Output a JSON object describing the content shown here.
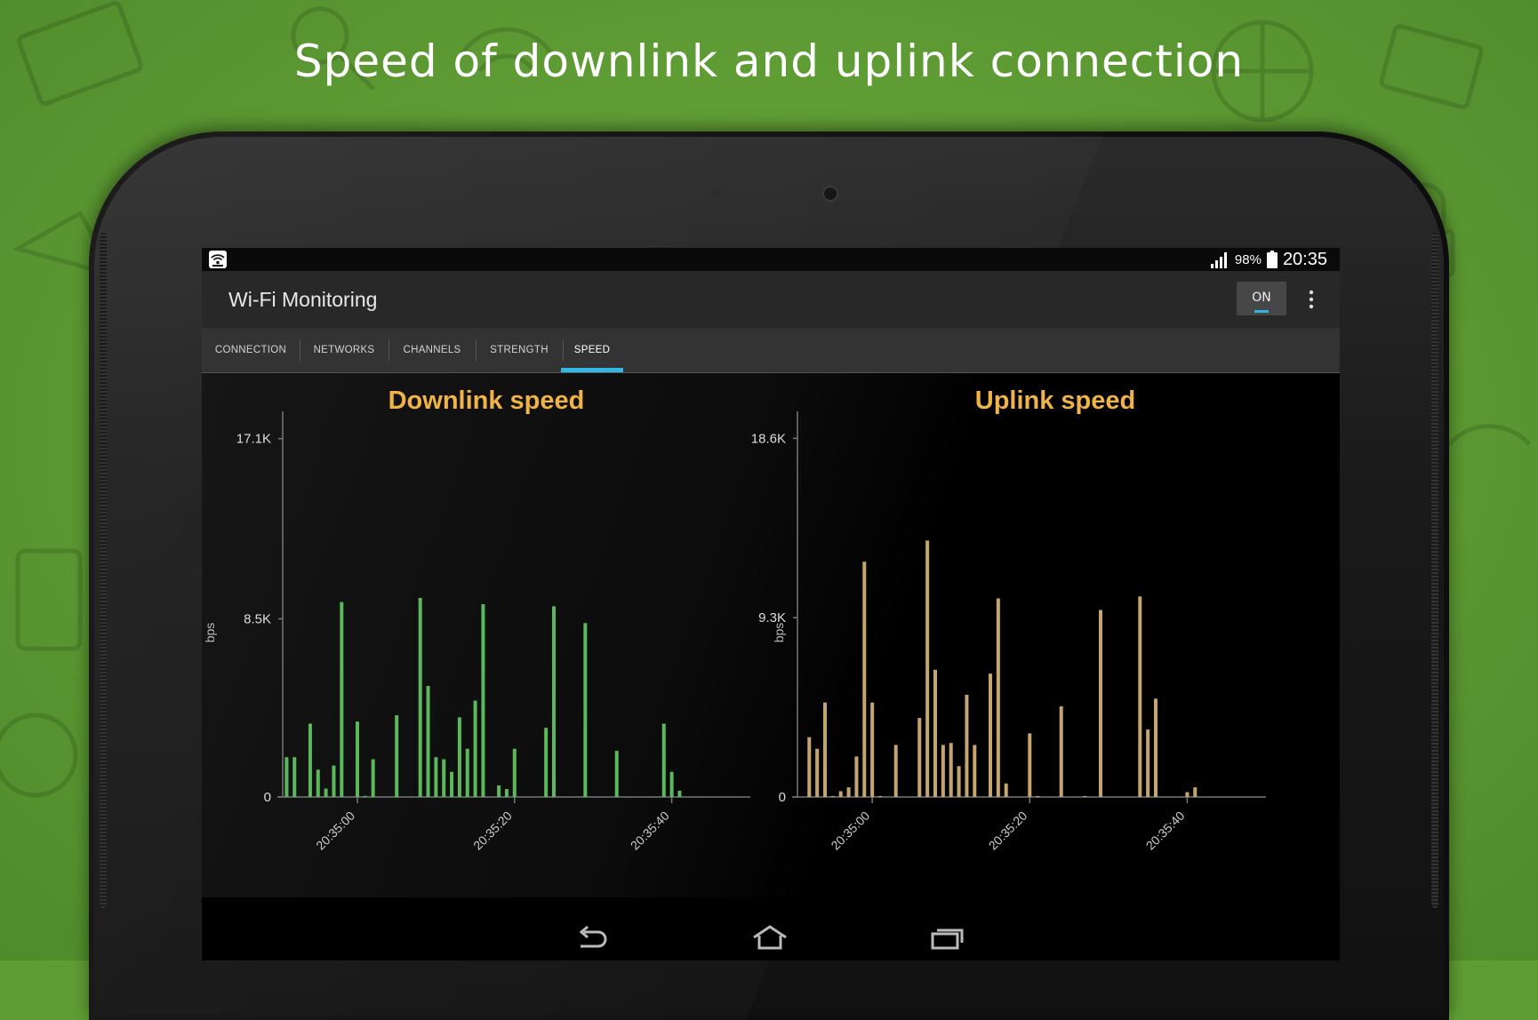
{
  "headline": "Speed of downlink and uplink connection",
  "status_bar": {
    "battery": "98%",
    "time": "20:35",
    "icons": [
      "wifi-monitor-icon",
      "signal-icon",
      "battery-icon"
    ]
  },
  "app": {
    "title": "Wi-Fi Monitoring",
    "toggle_label": "ON"
  },
  "tabs": [
    {
      "label": "CONNECTION"
    },
    {
      "label": "NETWORKS"
    },
    {
      "label": "CHANNELS"
    },
    {
      "label": "STRENGTH"
    },
    {
      "label": "SPEED",
      "active": true
    }
  ],
  "colors": {
    "accent": "#33b5e5",
    "chart_title": "#f0b347",
    "downlink_bar": "#5cb85c",
    "uplink_bar": "#c4a470",
    "background_green": "#5f9d34"
  },
  "nav_icons": [
    "back-icon",
    "home-icon",
    "recents-icon"
  ],
  "chart_data": [
    {
      "type": "bar",
      "title": "Downlink speed",
      "ylabel": "bps",
      "ytick_labels": [
        "0",
        "8.5K",
        "17.1K"
      ],
      "yticks": [
        0,
        8500,
        17100
      ],
      "ylim": [
        0,
        18400
      ],
      "xlim": [
        -3.5,
        56
      ],
      "xtick_positions": [
        6,
        26,
        46
      ],
      "xtick_labels": [
        "20:35:00",
        "20:35:20",
        "20:35:40"
      ],
      "color": "#5cb85c",
      "x": [
        -3,
        -2,
        0,
        1,
        2,
        3,
        4,
        6,
        7,
        8,
        11,
        14,
        15,
        16,
        17,
        18,
        19,
        20,
        21,
        22,
        24,
        25,
        26,
        30,
        31,
        35,
        39,
        45,
        46,
        47,
        48,
        49
      ],
      "values": [
        1900,
        1900,
        3500,
        1300,
        400,
        1500,
        9300,
        3600,
        50,
        1800,
        3900,
        9500,
        5300,
        1900,
        1800,
        1200,
        3800,
        2300,
        4600,
        9200,
        550,
        380,
        2300,
        3300,
        9100,
        8300,
        2200,
        3500,
        1200,
        300,
        0,
        0
      ]
    },
    {
      "type": "bar",
      "title": "Uplink speed",
      "ylabel": "bps",
      "ytick_labels": [
        "0",
        "9.3K",
        "18.6K"
      ],
      "yticks": [
        0,
        9300,
        18600
      ],
      "ylim": [
        0,
        20000
      ],
      "xlim": [
        -3.5,
        56
      ],
      "xtick_positions": [
        6,
        26,
        46
      ],
      "xtick_labels": [
        "20:35:00",
        "20:35:20",
        "20:35:40"
      ],
      "color": "#c4a470",
      "x": [
        -2,
        -1,
        0,
        1,
        2,
        3,
        4,
        5,
        6,
        7,
        9,
        12,
        13,
        14,
        15,
        16,
        17,
        18,
        19,
        21,
        22,
        23,
        26,
        27,
        30,
        33,
        35,
        40,
        41,
        42,
        46,
        47,
        48,
        49
      ],
      "values": [
        3100,
        2500,
        4900,
        50,
        300,
        500,
        2100,
        12200,
        4900,
        50,
        2700,
        4100,
        13300,
        6600,
        2700,
        2800,
        1600,
        5300,
        2700,
        6400,
        10300,
        700,
        3300,
        50,
        4700,
        50,
        9700,
        10400,
        3500,
        5100,
        250,
        500,
        0,
        0
      ]
    }
  ]
}
